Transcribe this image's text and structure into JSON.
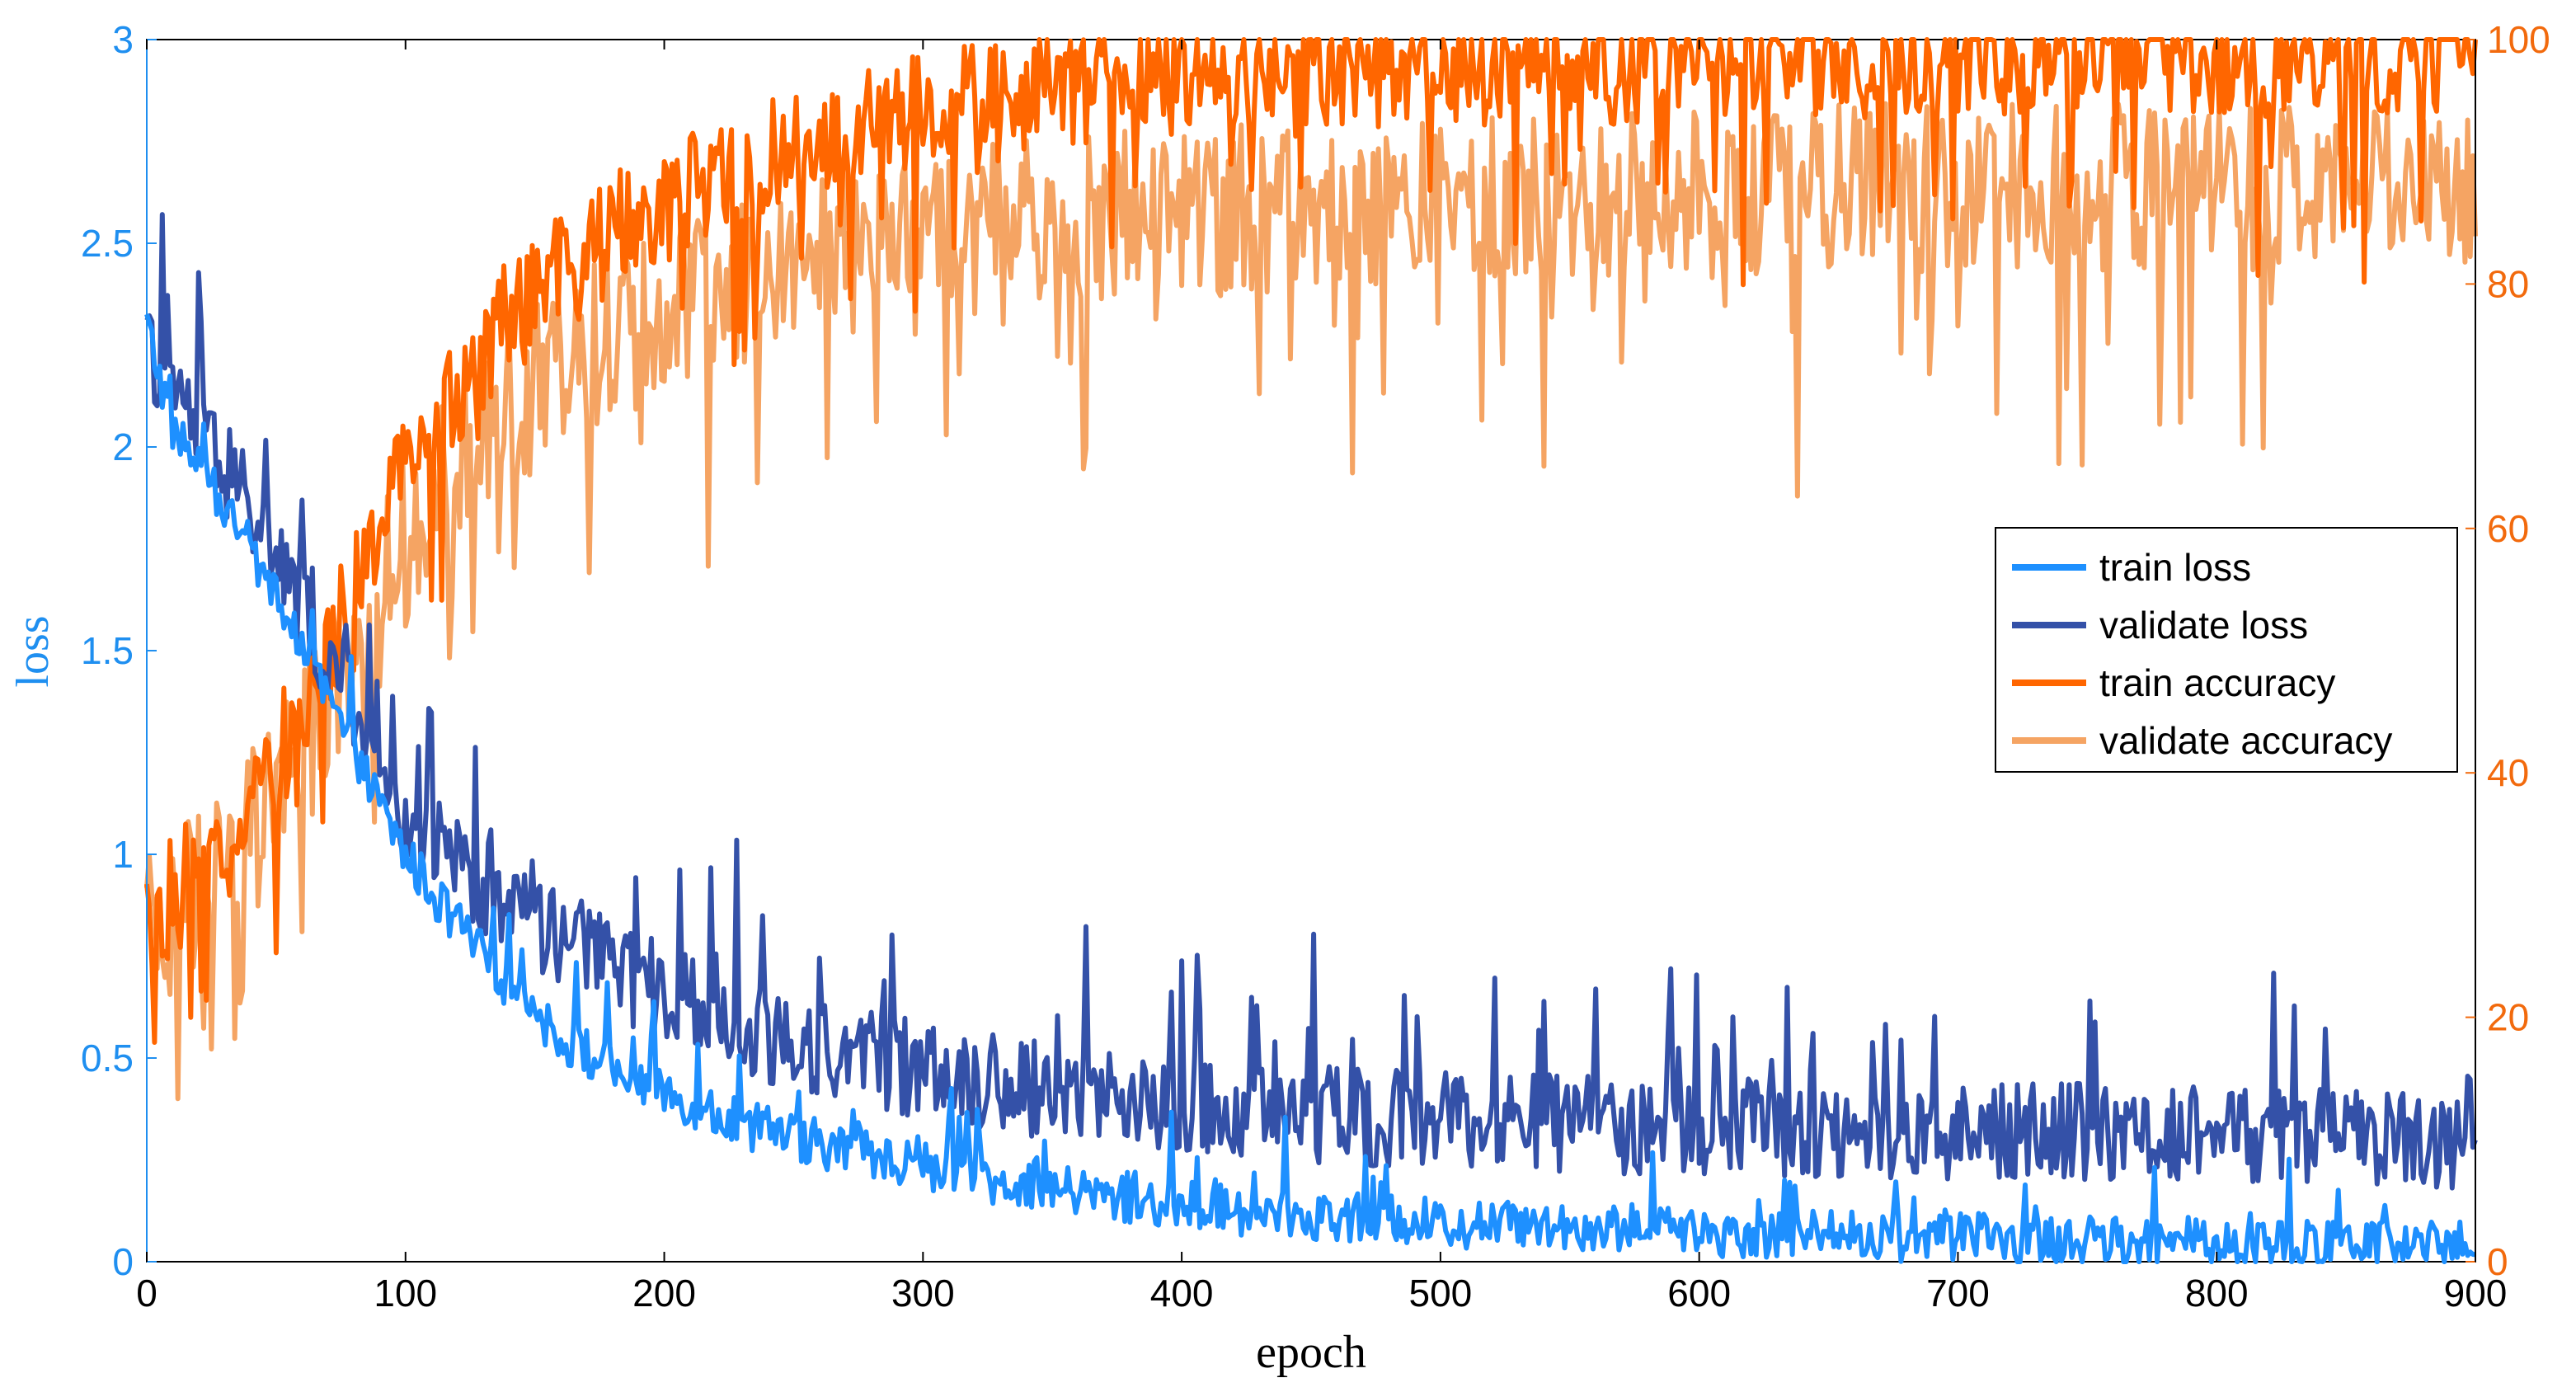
{
  "chart_data": {
    "type": "line",
    "xlabel": "epoch",
    "ylabel_left": "loss",
    "ylabel_right": "",
    "xlim": [
      0,
      900
    ],
    "ylim_left": [
      0,
      3
    ],
    "ylim_right": [
      0,
      100
    ],
    "xticks": [
      0,
      100,
      200,
      300,
      400,
      500,
      600,
      700,
      800,
      900
    ],
    "yticks_left": [
      0,
      0.5,
      1,
      1.5,
      2,
      2.5,
      3
    ],
    "yticks_right": [
      0,
      20,
      40,
      60,
      80,
      100
    ],
    "xtick_labels": [
      "0",
      "100",
      "200",
      "300",
      "400",
      "500",
      "600",
      "700",
      "800",
      "900"
    ],
    "ytick_labels_left": [
      "0",
      "0.5",
      "1",
      "1.5",
      "2",
      "2.5",
      "3"
    ],
    "ytick_labels_right": [
      "0",
      "20",
      "40",
      "60",
      "80",
      "100"
    ],
    "grid": false,
    "legend_position": "right",
    "colors": {
      "left_axis": "#1f8ff0",
      "right_axis": "#f26a0d"
    },
    "series": [
      {
        "name": "train loss",
        "axis": "left",
        "color": "#1e90ff",
        "x": [
          0,
          10,
          20,
          30,
          40,
          50,
          60,
          70,
          80,
          90,
          100,
          120,
          140,
          160,
          180,
          200,
          220,
          240,
          260,
          280,
          300,
          320,
          340,
          360,
          380,
          400,
          430,
          460,
          490,
          520,
          550,
          580,
          610,
          640,
          670,
          700,
          730,
          760,
          790,
          820,
          850,
          880,
          900
        ],
        "y": [
          2.3,
          2.05,
          1.95,
          1.85,
          1.75,
          1.62,
          1.5,
          1.38,
          1.25,
          1.12,
          1.0,
          0.82,
          0.68,
          0.55,
          0.47,
          0.42,
          0.36,
          0.32,
          0.29,
          0.26,
          0.24,
          0.21,
          0.19,
          0.17,
          0.15,
          0.14,
          0.12,
          0.11,
          0.1,
          0.09,
          0.09,
          0.08,
          0.07,
          0.07,
          0.06,
          0.06,
          0.05,
          0.05,
          0.05,
          0.05,
          0.04,
          0.04,
          0.04
        ],
        "noise": 0.06
      },
      {
        "name": "validate loss",
        "axis": "left",
        "color": "#3451a8",
        "x": [
          0,
          10,
          20,
          30,
          40,
          50,
          60,
          70,
          80,
          90,
          100,
          120,
          140,
          160,
          180,
          200,
          220,
          240,
          260,
          280,
          300,
          320,
          340,
          360,
          380,
          400,
          430,
          460,
          490,
          520,
          550,
          580,
          610,
          640,
          670,
          700,
          730,
          760,
          790,
          820,
          850,
          880,
          900
        ],
        "y": [
          2.25,
          2.15,
          2.05,
          1.95,
          1.85,
          1.72,
          1.6,
          1.48,
          1.35,
          1.22,
          1.1,
          0.97,
          0.88,
          0.8,
          0.72,
          0.66,
          0.6,
          0.56,
          0.52,
          0.5,
          0.47,
          0.45,
          0.43,
          0.41,
          0.39,
          0.38,
          0.37,
          0.36,
          0.35,
          0.34,
          0.34,
          0.33,
          0.33,
          0.33,
          0.32,
          0.32,
          0.32,
          0.32,
          0.31,
          0.31,
          0.31,
          0.3,
          0.3
        ],
        "noise": 0.12
      },
      {
        "name": "train accuracy",
        "axis": "right",
        "color": "#ff6600",
        "x": [
          0,
          10,
          20,
          30,
          40,
          50,
          60,
          70,
          80,
          90,
          100,
          120,
          140,
          160,
          180,
          200,
          220,
          240,
          260,
          280,
          300,
          320,
          340,
          360,
          380,
          400,
          430,
          460,
          490,
          520,
          550,
          580,
          610,
          640,
          670,
          700,
          730,
          760,
          790,
          820,
          850,
          880,
          900
        ],
        "y": [
          28,
          30,
          32,
          34,
          37,
          41,
          45,
          50,
          55,
          60,
          65,
          72,
          77,
          81,
          84,
          87,
          89,
          90,
          92,
          93,
          94,
          95,
          95.5,
          96,
          96.5,
          97,
          97.5,
          97.5,
          98,
          98,
          98,
          98,
          98.5,
          98.5,
          98.5,
          98.5,
          99,
          99,
          99,
          99,
          99,
          99,
          99
        ],
        "noise": 5
      },
      {
        "name": "validate accuracy",
        "axis": "right",
        "color": "#f5a463",
        "x": [
          0,
          10,
          20,
          30,
          40,
          50,
          60,
          70,
          80,
          90,
          100,
          120,
          140,
          160,
          180,
          200,
          220,
          240,
          260,
          280,
          300,
          320,
          340,
          360,
          380,
          400,
          430,
          460,
          490,
          520,
          550,
          580,
          610,
          640,
          670,
          700,
          730,
          760,
          790,
          820,
          850,
          880,
          900
        ],
        "y": [
          26,
          28,
          30,
          32,
          35,
          38,
          42,
          46,
          51,
          55,
          59,
          66,
          70,
          73,
          76,
          78,
          80,
          81,
          82,
          83,
          84,
          84.5,
          85,
          85.5,
          86,
          86,
          86.5,
          86.5,
          87,
          87,
          87,
          87.5,
          87.5,
          87.5,
          88,
          88,
          88,
          88,
          88,
          88,
          88,
          88,
          88
        ],
        "noise": 7
      }
    ]
  }
}
